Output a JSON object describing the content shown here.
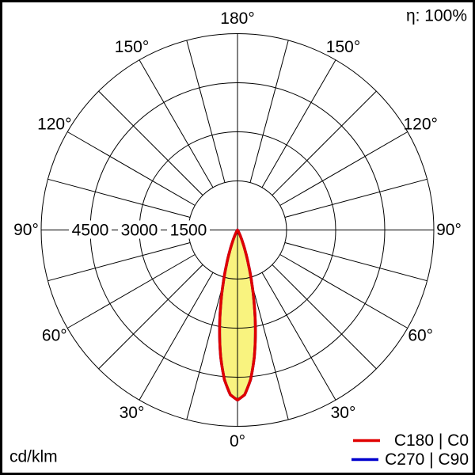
{
  "header": {
    "eta_label": "η: 100%"
  },
  "footer": {
    "unit_label": "cd/klm"
  },
  "legend": {
    "items": [
      {
        "label": "C180 | C0",
        "color": "#e00000"
      },
      {
        "label": "C270 | C90",
        "color": "#0000cd"
      }
    ]
  },
  "polar_axes": {
    "angle_labels": [
      {
        "deg": 180,
        "text": "180°"
      },
      {
        "deg": 150,
        "text": "150°"
      },
      {
        "deg": 120,
        "text": "120°"
      },
      {
        "deg": 90,
        "text": "90°"
      },
      {
        "deg": 60,
        "text": "60°"
      },
      {
        "deg": 30,
        "text": "30°"
      },
      {
        "deg": 0,
        "text": "0°"
      }
    ],
    "radial_tick_values": [
      4500,
      3000,
      1500
    ],
    "radial_tick_labels": [
      "4500",
      "3000",
      "1500"
    ],
    "radial_max": 6000,
    "spoke_step_degrees": 15
  },
  "chart_data": {
    "type": "line",
    "subtype": "polar-photometric-intensity-distribution",
    "units": "cd/klm",
    "efficiency_percent": 100,
    "radial_axis": {
      "ticks": [
        1500,
        3000,
        4500
      ],
      "max": 6000,
      "unit": "cd/klm"
    },
    "angle_axis": {
      "zero_position": "bottom",
      "label_step_deg": 30,
      "spoke_step_deg": 15
    },
    "fill_color": "#f9f37f",
    "peak_intensity_cd_per_klm": 5200,
    "peak_angle_deg": 0,
    "series": [
      {
        "name": "C180 | C0",
        "color": "#e00000",
        "angles_deg": [
          0,
          2.5,
          5,
          7.5,
          10,
          12.5,
          15,
          17.5,
          20,
          22.5,
          25,
          27.5,
          30,
          35,
          40,
          45,
          60,
          75,
          90
        ],
        "intensity_cd_per_klm": [
          5200,
          5040,
          4590,
          3925,
          3155,
          2380,
          1690,
          1125,
          705,
          415,
          230,
          120,
          60,
          15,
          5,
          0,
          0,
          0,
          0
        ]
      },
      {
        "name": "C270 | C90",
        "color": "#0000cd",
        "angles_deg": [
          0,
          2.5,
          5,
          7.5,
          10,
          12.5,
          15,
          17.5,
          20,
          22.5,
          25,
          27.5,
          30,
          35,
          40,
          45,
          60,
          75,
          90
        ],
        "intensity_cd_per_klm": [
          5200,
          5040,
          4590,
          3925,
          3155,
          2380,
          1690,
          1125,
          705,
          415,
          230,
          120,
          60,
          15,
          5,
          0,
          0,
          0,
          0
        ]
      }
    ]
  }
}
